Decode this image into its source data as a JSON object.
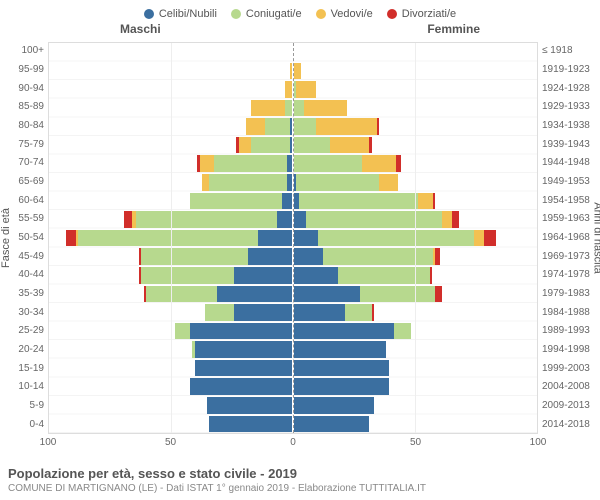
{
  "chart": {
    "type": "population-pyramid",
    "legend": [
      {
        "label": "Celibi/Nubili",
        "color": "#3b6fa0"
      },
      {
        "label": "Coniugati/e",
        "color": "#b7d98e"
      },
      {
        "label": "Vedovi/e",
        "color": "#f3c152"
      },
      {
        "label": "Divorziati/e",
        "color": "#d12e2a"
      }
    ],
    "header_male": "Maschi",
    "header_female": "Femmine",
    "yaxis_left_title": "Fasce di età",
    "yaxis_right_title": "Anni di nascita",
    "xmax": 100,
    "xticks": [
      100,
      50,
      0,
      50,
      100
    ],
    "age_groups": [
      "100+",
      "95-99",
      "90-94",
      "85-89",
      "80-84",
      "75-79",
      "70-74",
      "65-69",
      "60-64",
      "55-59",
      "50-54",
      "45-49",
      "40-44",
      "35-39",
      "30-34",
      "25-29",
      "20-24",
      "15-19",
      "10-14",
      "5-9",
      "0-4"
    ],
    "birth_years": [
      "≤ 1918",
      "1919-1923",
      "1924-1928",
      "1929-1933",
      "1934-1938",
      "1939-1943",
      "1944-1948",
      "1949-1953",
      "1954-1958",
      "1959-1963",
      "1964-1968",
      "1969-1973",
      "1974-1978",
      "1979-1983",
      "1984-1988",
      "1989-1993",
      "1994-1998",
      "1999-2003",
      "2004-2008",
      "2009-2013",
      "2014-2018"
    ],
    "male": [
      [
        0,
        0,
        0,
        0
      ],
      [
        0,
        0,
        1,
        0
      ],
      [
        0,
        0,
        3,
        0
      ],
      [
        0,
        3,
        14,
        0
      ],
      [
        1,
        10,
        8,
        0
      ],
      [
        1,
        16,
        5,
        1
      ],
      [
        2,
        30,
        6,
        1
      ],
      [
        2,
        32,
        3,
        0
      ],
      [
        4,
        38,
        0,
        0
      ],
      [
        6,
        58,
        2,
        3
      ],
      [
        14,
        74,
        1,
        4
      ],
      [
        18,
        44,
        0,
        1
      ],
      [
        24,
        38,
        0,
        1
      ],
      [
        31,
        29,
        0,
        1
      ],
      [
        24,
        12,
        0,
        0
      ],
      [
        42,
        6,
        0,
        0
      ],
      [
        40,
        1,
        0,
        0
      ],
      [
        40,
        0,
        0,
        0
      ],
      [
        42,
        0,
        0,
        0
      ],
      [
        35,
        0,
        0,
        0
      ],
      [
        34,
        0,
        0,
        0
      ]
    ],
    "female": [
      [
        0,
        0,
        0,
        0
      ],
      [
        0,
        0,
        3,
        0
      ],
      [
        0,
        1,
        8,
        0
      ],
      [
        0,
        4,
        18,
        0
      ],
      [
        0,
        9,
        25,
        1
      ],
      [
        0,
        15,
        16,
        1
      ],
      [
        0,
        28,
        14,
        2
      ],
      [
        1,
        34,
        8,
        0
      ],
      [
        2,
        49,
        6,
        1
      ],
      [
        5,
        56,
        4,
        3
      ],
      [
        10,
        64,
        4,
        5
      ],
      [
        12,
        45,
        1,
        2
      ],
      [
        18,
        38,
        0,
        1
      ],
      [
        27,
        31,
        0,
        3
      ],
      [
        21,
        11,
        0,
        1
      ],
      [
        41,
        7,
        0,
        0
      ],
      [
        38,
        0,
        0,
        0
      ],
      [
        39,
        0,
        0,
        0
      ],
      [
        39,
        0,
        0,
        0
      ],
      [
        33,
        0,
        0,
        0
      ],
      [
        31,
        0,
        0,
        0
      ]
    ],
    "grid_color": "#eeeeee",
    "zero_color": "#999999",
    "row_alt_color": "#f4f4f4",
    "background": "#ffffff"
  },
  "footer": {
    "title": "Popolazione per età, sesso e stato civile - 2019",
    "subtitle": "COMUNE DI MARTIGNANO (LE) - Dati ISTAT 1° gennaio 2019 - Elaborazione TUTTITALIA.IT"
  }
}
